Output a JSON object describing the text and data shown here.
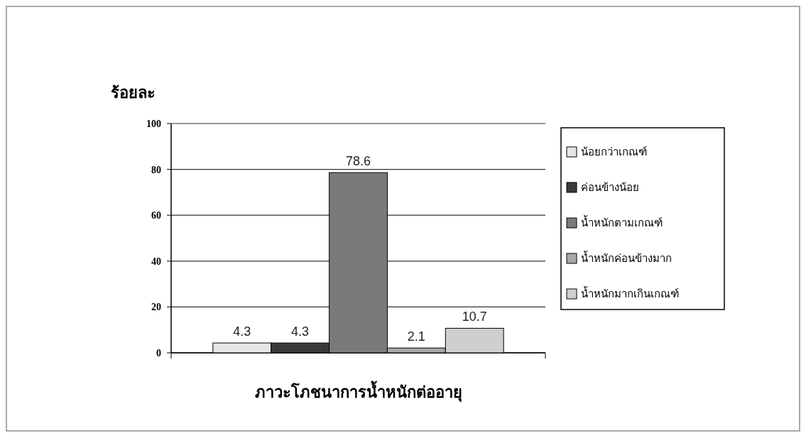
{
  "chart_data": {
    "type": "bar",
    "ylabel": "ร้อยละ",
    "categories": [
      "ภาวะโภชนาการน้ำหนักต่ออายุ"
    ],
    "series": [
      {
        "name": "น้อยกว่าเกณฑ์",
        "color": "#e6e6e6",
        "values": [
          4.3
        ]
      },
      {
        "name": "ค่อนข้างน้อย",
        "color": "#3a3a3a",
        "values": [
          4.3
        ]
      },
      {
        "name": "น้ำหนักตามเกณฑ์",
        "color": "#7a7a7a",
        "values": [
          78.6
        ]
      },
      {
        "name": "น้ำหนักค่อนข้างมาก",
        "color": "#a8a8a8",
        "values": [
          2.1
        ]
      },
      {
        "name": "น้ำหนักมากเกินเกณฑ์",
        "color": "#cfcfcf",
        "values": [
          10.7
        ]
      }
    ],
    "ylim": [
      0,
      100
    ],
    "yticks": [
      0,
      20,
      40,
      60,
      80,
      100
    ],
    "grid": "y",
    "legend": "right",
    "data_labels": true
  }
}
